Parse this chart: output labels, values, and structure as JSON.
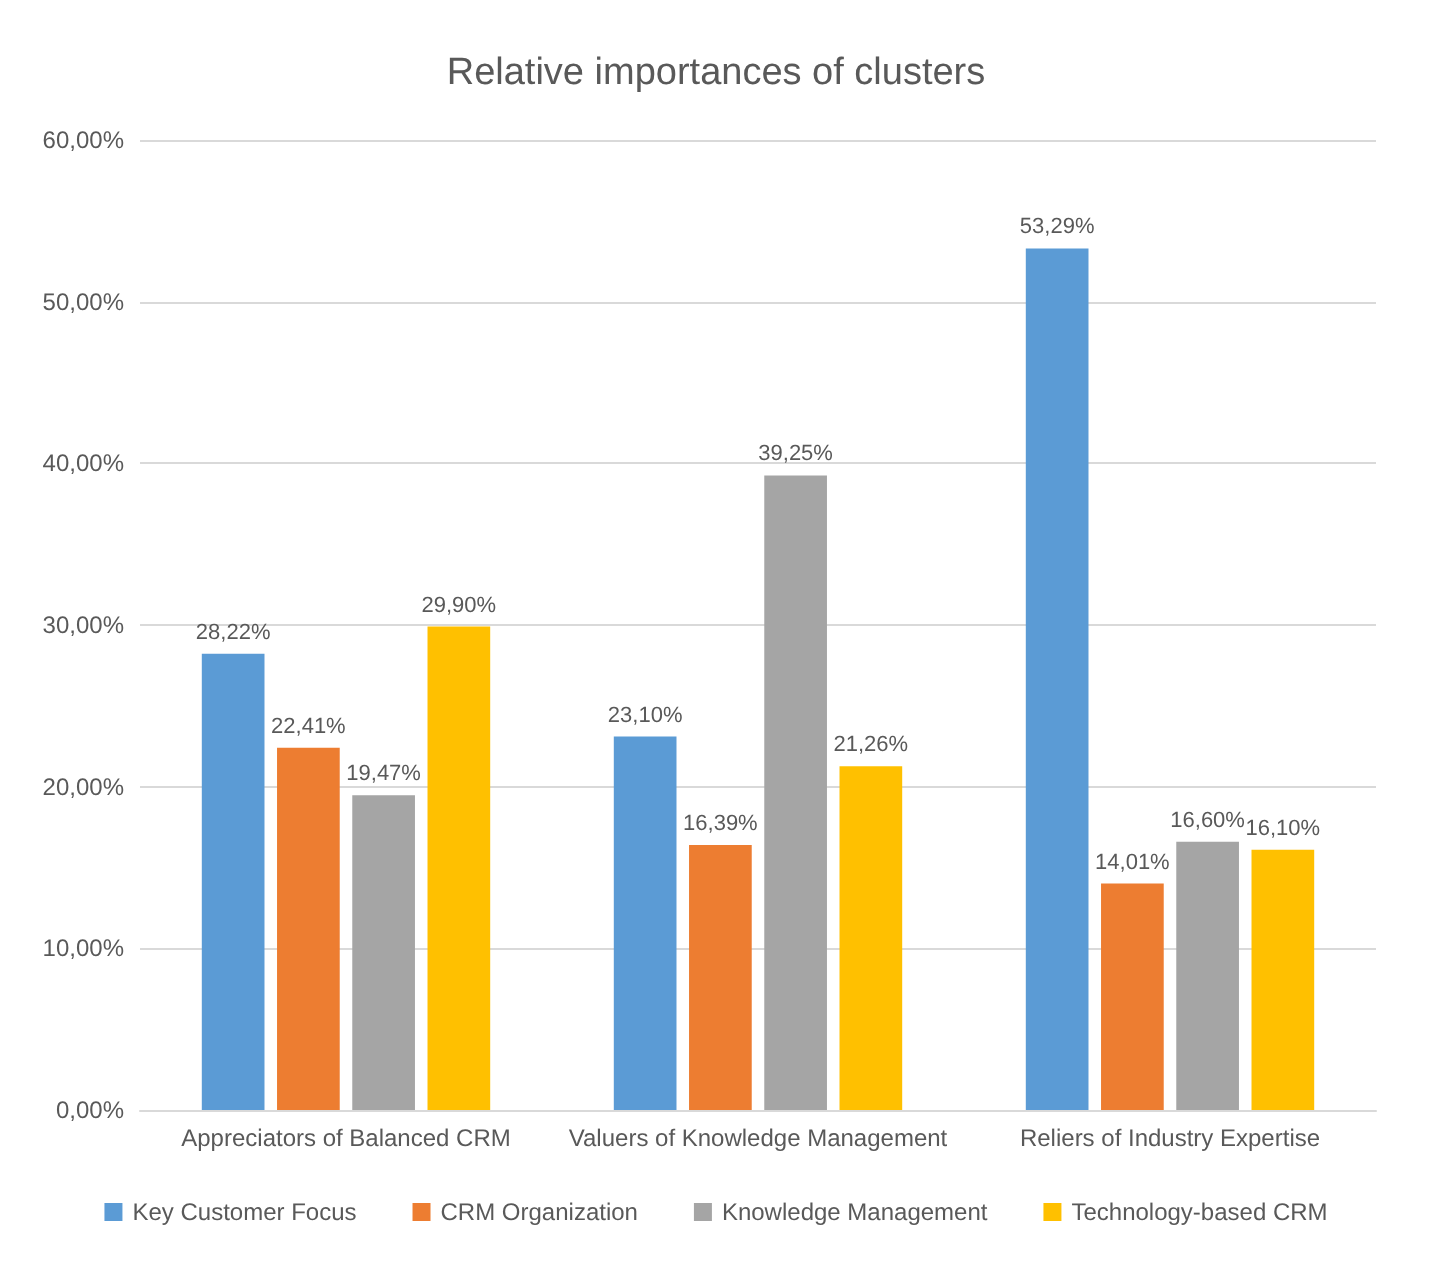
{
  "chart_data": {
    "type": "bar",
    "title": "Relative importances of clusters",
    "categories": [
      "Appreciators of Balanced CRM",
      "Valuers of Knowledge Management",
      "Reliers of Industry Expertise"
    ],
    "series": [
      {
        "name": "Key Customer Focus",
        "color": "#5b9bd5",
        "values": [
          28.22,
          23.1,
          53.29
        ],
        "value_labels": [
          "28,22%",
          "23,10%",
          "53,29%"
        ]
      },
      {
        "name": "CRM Organization",
        "color": "#ed7d31",
        "values": [
          22.41,
          16.39,
          14.01
        ],
        "value_labels": [
          "22,41%",
          "16,39%",
          "14,01%"
        ]
      },
      {
        "name": "Knowledge Management",
        "color": "#a5a5a5",
        "values": [
          19.47,
          39.25,
          16.6
        ],
        "value_labels": [
          "19,47%",
          "39,25%",
          "16,60%"
        ]
      },
      {
        "name": "Technology-based CRM",
        "color": "#ffc000",
        "values": [
          29.9,
          21.26,
          16.1
        ],
        "value_labels": [
          "29,90%",
          "21,26%",
          "16,10%"
        ]
      }
    ],
    "ylim": [
      0,
      60
    ],
    "yticks": [
      {
        "value": 0,
        "label": "0,00%"
      },
      {
        "value": 10,
        "label": "10,00%"
      },
      {
        "value": 20,
        "label": "20,00%"
      },
      {
        "value": 30,
        "label": "30,00%"
      },
      {
        "value": 40,
        "label": "40,00%"
      },
      {
        "value": 50,
        "label": "50,00%"
      },
      {
        "value": 60,
        "label": "60,00%"
      }
    ],
    "grid": "y",
    "legend": "bottom"
  }
}
